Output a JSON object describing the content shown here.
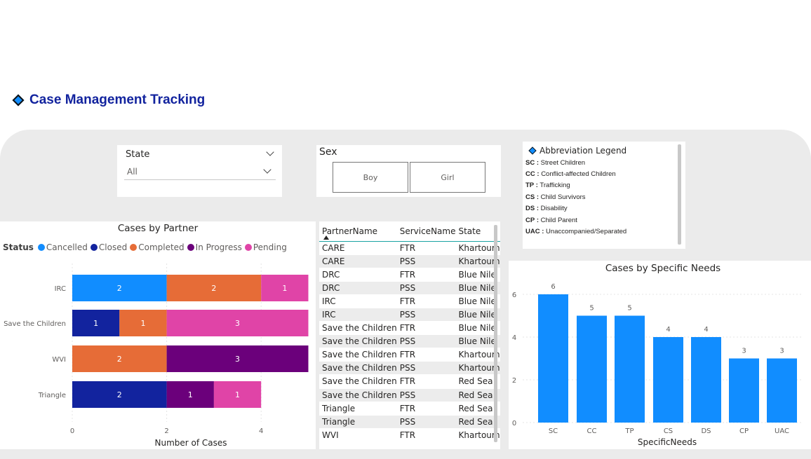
{
  "page_title": "Case Management Tracking",
  "colors": {
    "accent": "#118DFF",
    "title": "#12239E",
    "cancelled": "#118DFF",
    "closed": "#12239E",
    "completed": "#E66C37",
    "in_progress": "#6B007B",
    "pending": "#E044A7"
  },
  "state_slicer": {
    "label": "State",
    "value": "All"
  },
  "sex_slicer": {
    "label": "Sex",
    "options": [
      "Boy",
      "Girl"
    ]
  },
  "abbreviation_legend": {
    "title": "Abbreviation Legend",
    "items": [
      {
        "code": "SC",
        "desc": "Street Children"
      },
      {
        "code": "CC",
        "desc": "Conflict-affected Children"
      },
      {
        "code": "TP",
        "desc": "Trafficking"
      },
      {
        "code": "CS",
        "desc": "Child Survivors"
      },
      {
        "code": "DS",
        "desc": "Disability"
      },
      {
        "code": "CP",
        "desc": "Child Parent"
      },
      {
        "code": "UAC",
        "desc": "Unaccompanied/Separated"
      }
    ]
  },
  "table": {
    "columns": [
      "PartnerName",
      "ServiceName",
      "State"
    ],
    "rows": [
      [
        "CARE",
        "FTR",
        "Khartoum"
      ],
      [
        "CARE",
        "PSS",
        "Khartoum"
      ],
      [
        "DRC",
        "FTR",
        "Blue Nile"
      ],
      [
        "DRC",
        "PSS",
        "Blue Nile"
      ],
      [
        "IRC",
        "FTR",
        "Blue Nile"
      ],
      [
        "IRC",
        "PSS",
        "Blue Nile"
      ],
      [
        "Save the Children",
        "FTR",
        "Blue Nile"
      ],
      [
        "Save the Children",
        "PSS",
        "Blue Nile"
      ],
      [
        "Save the Children",
        "FTR",
        "Khartoum"
      ],
      [
        "Save the Children",
        "PSS",
        "Khartoum"
      ],
      [
        "Save the Children",
        "FTR",
        "Red Sea"
      ],
      [
        "Save the Children",
        "PSS",
        "Red Sea"
      ],
      [
        "Triangle",
        "FTR",
        "Red Sea"
      ],
      [
        "Triangle",
        "PSS",
        "Red Sea"
      ],
      [
        "WVI",
        "FTR",
        "Khartoum"
      ]
    ]
  },
  "chart_data": [
    {
      "type": "bar",
      "orientation": "horizontal",
      "stacked": true,
      "title": "Cases by Partner",
      "legend_title": "Status",
      "categories": [
        "IRC",
        "Save the Children",
        "WVI",
        "Triangle"
      ],
      "series": [
        {
          "name": "Cancelled",
          "values": [
            2,
            0,
            0,
            0
          ]
        },
        {
          "name": "Closed",
          "values": [
            0,
            1,
            0,
            2
          ]
        },
        {
          "name": "Completed",
          "values": [
            2,
            1,
            2,
            0
          ]
        },
        {
          "name": "In Progress",
          "values": [
            0,
            0,
            3,
            1
          ]
        },
        {
          "name": "Pending",
          "values": [
            1,
            3,
            0,
            1
          ]
        }
      ],
      "xlabel": "Number of Cases",
      "xlim": [
        0,
        5
      ],
      "xticks": [
        0,
        2,
        4
      ],
      "grid": true
    },
    {
      "type": "bar",
      "title": "Cases by Specific Needs",
      "categories": [
        "SC",
        "CC",
        "TP",
        "CS",
        "DS",
        "CP",
        "UAC"
      ],
      "values": [
        6,
        5,
        5,
        4,
        4,
        3,
        3
      ],
      "xlabel": "SpecificNeeds",
      "ylim": [
        0,
        7
      ],
      "yticks": [
        0,
        2,
        4,
        6
      ],
      "grid": true
    }
  ]
}
